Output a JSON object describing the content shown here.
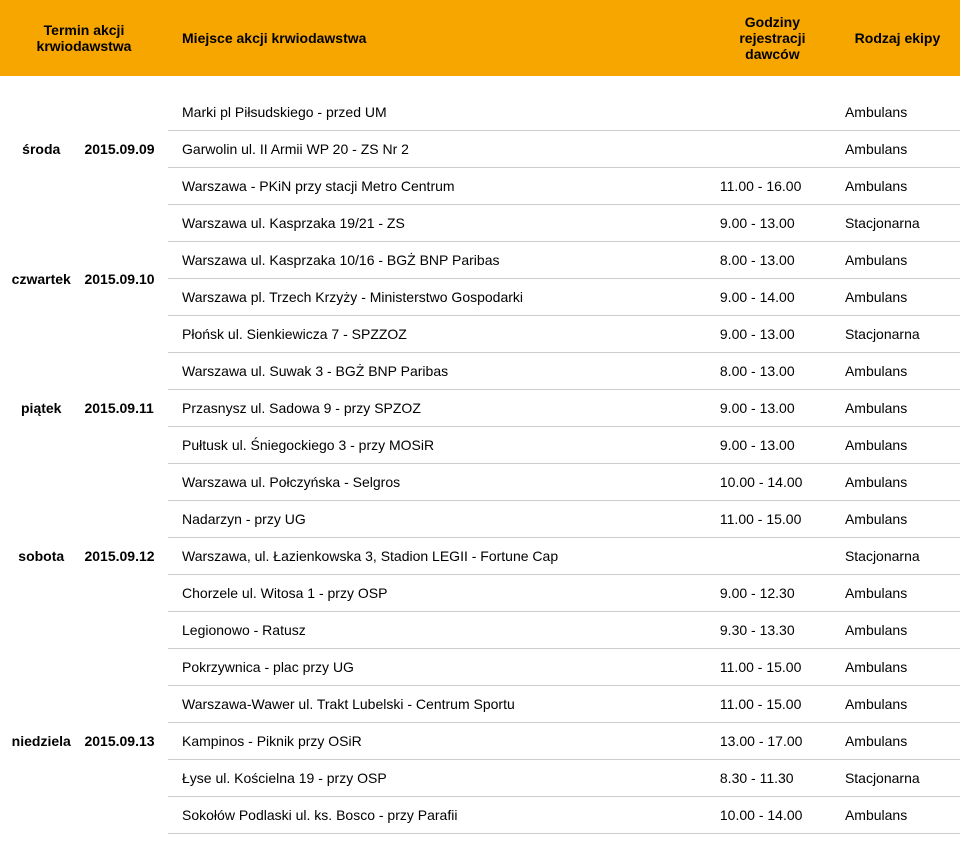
{
  "header": {
    "termin": "Termin akcji krwiodawstwa",
    "miejsce": "Miejsce akcji krwiodawstwa",
    "godziny": "Godziny rejestracji dawców",
    "rodzaj": "Rodzaj ekipy"
  },
  "rows": [
    {
      "day": "",
      "date": "",
      "place": "Marki pl Piłsudskiego - przed UM",
      "time": "",
      "type": "Ambulans"
    },
    {
      "day": "środa",
      "date": "2015.09.09",
      "place": "Garwolin ul. II Armii WP 20 - ZS Nr 2",
      "time": "",
      "type": "Ambulans"
    },
    {
      "day": "",
      "date": "",
      "place": "Warszawa - PKiN przy stacji Metro Centrum",
      "time": "11.00 - 16.00",
      "type": "Ambulans"
    },
    {
      "day": "",
      "date": "",
      "place": "Warszawa ul. Kasprzaka 19/21 - ZS",
      "time": "9.00 - 13.00",
      "type": "Stacjonarna"
    },
    {
      "day": "czwartek",
      "date": "2015.09.10",
      "place": "Warszawa ul. Kasprzaka 10/16 - BGŻ BNP Paribas",
      "time": "8.00 - 13.00",
      "type": "Ambulans"
    },
    {
      "day": "",
      "date": "",
      "place": "Warszawa pl. Trzech Krzyży - Ministerstwo Gospodarki",
      "time": "9.00 - 14.00",
      "type": "Ambulans"
    },
    {
      "day": "",
      "date": "",
      "place": "Płońsk ul. Sienkiewicza 7 - SPZZOZ",
      "time": "9.00 - 13.00",
      "type": "Stacjonarna"
    },
    {
      "day": "",
      "date": "",
      "place": "Warszawa ul. Suwak 3 - BGŻ BNP Paribas",
      "time": "8.00 - 13.00",
      "type": "Ambulans"
    },
    {
      "day": "piątek",
      "date": "2015.09.11",
      "place": "Przasnysz ul. Sadowa 9 - przy SPZOZ",
      "time": "9.00 - 13.00",
      "type": "Ambulans"
    },
    {
      "day": "",
      "date": "",
      "place": "Pułtusk ul. Śniegockiego 3 - przy MOSiR",
      "time": "9.00 - 13.00",
      "type": "Ambulans"
    },
    {
      "day": "",
      "date": "",
      "place": "Warszawa ul. Połczyńska - Selgros",
      "time": "10.00 - 14.00",
      "type": "Ambulans"
    },
    {
      "day": "",
      "date": "",
      "place": "Nadarzyn - przy UG",
      "time": "11.00 - 15.00",
      "type": "Ambulans"
    },
    {
      "day": "sobota",
      "date": "2015.09.12",
      "place": "Warszawa, ul. Łazienkowska 3, Stadion LEGII - Fortune Cap",
      "time": "",
      "type": "Stacjonarna"
    },
    {
      "day": "",
      "date": "",
      "place": "Chorzele ul. Witosa 1 - przy OSP",
      "time": "9.00 - 12.30",
      "type": "Ambulans"
    },
    {
      "day": "",
      "date": "",
      "place": "Legionowo - Ratusz",
      "time": "9.30 - 13.30",
      "type": "Ambulans"
    },
    {
      "day": "",
      "date": "",
      "place": "Pokrzywnica - plac przy UG",
      "time": "11.00 - 15.00",
      "type": "Ambulans"
    },
    {
      "day": "",
      "date": "",
      "place": "Warszawa-Wawer ul. Trakt Lubelski - Centrum Sportu",
      "time": "11.00 - 15.00",
      "type": "Ambulans"
    },
    {
      "day": "niedziela",
      "date": "2015.09.13",
      "place": "Kampinos - Piknik przy OSiR",
      "time": "13.00 - 17.00",
      "type": "Ambulans"
    },
    {
      "day": "",
      "date": "",
      "place": "Łyse ul. Kościelna 19 - przy OSP",
      "time": "8.30 - 11.30",
      "type": "Stacjonarna"
    },
    {
      "day": "",
      "date": "",
      "place": "Sokołów Podlaski ul. ks. Bosco - przy Parafii",
      "time": "10.00 - 14.00",
      "type": "Ambulans"
    }
  ],
  "groups": [
    {
      "start": 0,
      "size": 3,
      "labelRow": 1
    },
    {
      "start": 3,
      "size": 4,
      "labelRow": 4
    },
    {
      "start": 7,
      "size": 3,
      "labelRow": 8
    },
    {
      "start": 10,
      "size": 5,
      "labelRow": 12
    },
    {
      "start": 15,
      "size": 5,
      "labelRow": 17
    }
  ],
  "colors": {
    "header_bg": "#f7a600",
    "border": "#cccccc",
    "text": "#000000",
    "background": "#ffffff"
  }
}
